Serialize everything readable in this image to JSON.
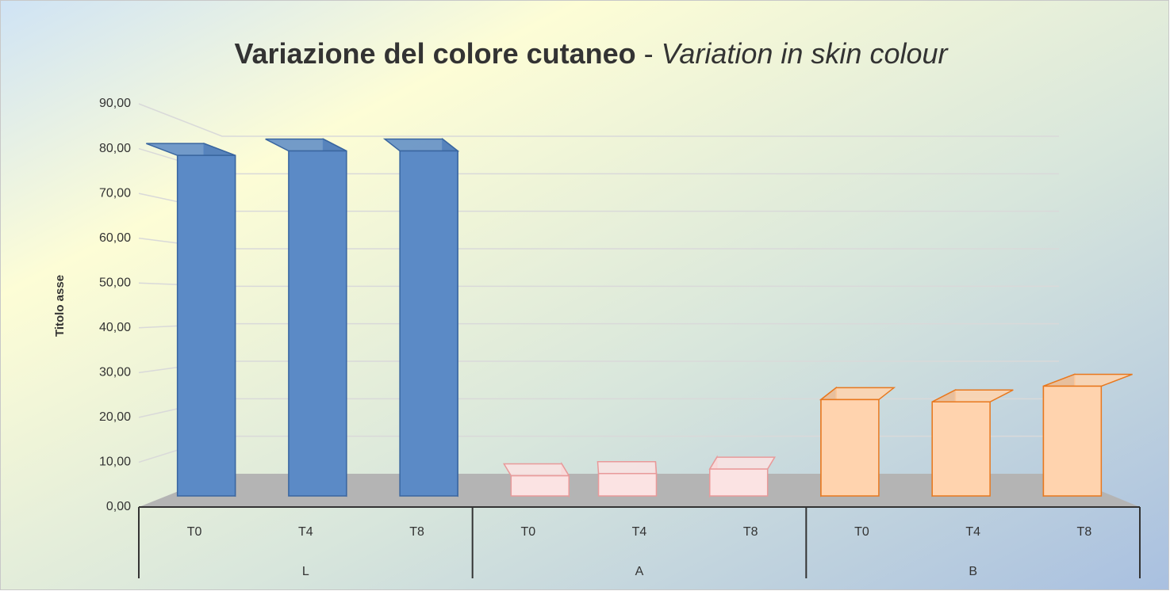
{
  "chart_data": {
    "type": "bar3d",
    "title": "Variazione del colore cutaneo",
    "title_separator": "-",
    "subtitle": "Variation in skin colour",
    "y_axis_label": "Titolo asse",
    "categories": [
      "T0",
      "T4",
      "T8"
    ],
    "groups": [
      {
        "name": "L",
        "color": "#5b8ac6",
        "edge": "#3a66a0",
        "side": "#45607e",
        "values": [
          76,
          77,
          77
        ]
      },
      {
        "name": "A",
        "color": "#fbe3e3",
        "edge": "#e89a9a",
        "side": "#e8a8a8",
        "values": [
          4.5,
          5,
          6
        ]
      },
      {
        "name": "B",
        "color": "#ffd3ae",
        "edge": "#e8781e",
        "side": "#5f4c40",
        "values": [
          21.5,
          21,
          24.5
        ]
      }
    ],
    "ylim": [
      0,
      90
    ],
    "yticks": [
      {
        "value": 0,
        "label": "0,00"
      },
      {
        "value": 10,
        "label": "10,00"
      },
      {
        "value": 20,
        "label": "20,00"
      },
      {
        "value": 30,
        "label": "30,00"
      },
      {
        "value": 40,
        "label": "40,00"
      },
      {
        "value": 50,
        "label": "50,00"
      },
      {
        "value": 60,
        "label": "60,00"
      },
      {
        "value": 70,
        "label": "70,00"
      },
      {
        "value": 80,
        "label": "80,00"
      },
      {
        "value": 90,
        "label": "90,00"
      }
    ],
    "grid": true
  }
}
